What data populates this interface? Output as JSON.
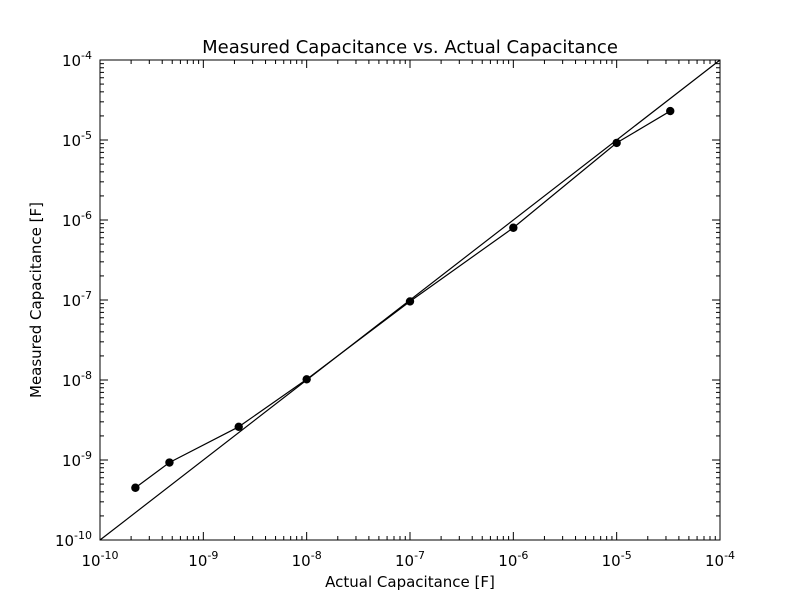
{
  "chart_data": {
    "type": "line",
    "title": "Measured Capacitance vs. Actual Capacitance",
    "xlabel": "Actual Capacitance [F]",
    "ylabel": "Measured Capacitance [F]",
    "xscale": "log",
    "yscale": "log",
    "xlim": [
      1e-10,
      0.0001
    ],
    "ylim": [
      1e-10,
      0.0001
    ],
    "grid": false,
    "xticks": [
      1e-10,
      1e-09,
      1e-08,
      1e-07,
      1e-06,
      1e-05,
      0.0001
    ],
    "yticks": [
      1e-10,
      1e-09,
      1e-08,
      1e-07,
      1e-06,
      1e-05,
      0.0001
    ],
    "tick_labels": [
      {
        "base": "10",
        "exp": "-10"
      },
      {
        "base": "10",
        "exp": "-9"
      },
      {
        "base": "10",
        "exp": "-8"
      },
      {
        "base": "10",
        "exp": "-7"
      },
      {
        "base": "10",
        "exp": "-6"
      },
      {
        "base": "10",
        "exp": "-5"
      },
      {
        "base": "10",
        "exp": "-4"
      }
    ],
    "series": [
      {
        "marker": "circle",
        "color": "#000000",
        "x": [
          2.2e-10,
          4.7e-10,
          2.2e-09,
          1e-08,
          1e-07,
          1e-06,
          1e-05,
          3.3e-05
        ],
        "y": [
          4.5e-10,
          9.3e-10,
          2.6e-09,
          1.02e-08,
          9.6e-08,
          8e-07,
          9.2e-06,
          2.3e-05
        ]
      },
      {
        "marker": "none",
        "color": "#000000",
        "x": [
          1e-10,
          0.0001
        ],
        "y": [
          1e-10,
          0.0001
        ]
      }
    ]
  }
}
